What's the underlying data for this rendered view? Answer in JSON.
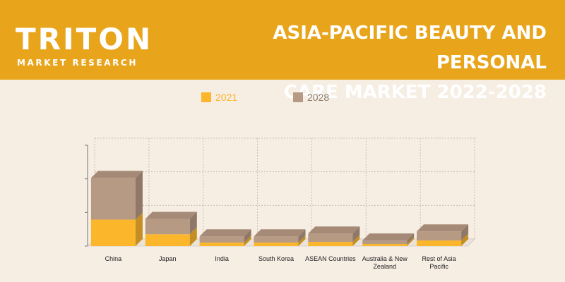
{
  "header": {
    "logo_word": "TRITON",
    "logo_sub": "MARKET RESEARCH",
    "title_line1": "ASIA-PACIFIC BEAUTY AND PERSONAL",
    "title_line2": "CARE MARKET 2022-2028"
  },
  "colors": {
    "banner": "#e8a51b",
    "background": "#f6ede3",
    "series_2021": "#fbb62c",
    "series_2028": "#b79a84"
  },
  "chart_data": {
    "type": "bar",
    "stacked": true,
    "categories": [
      "China",
      "Japan",
      "India",
      "South Korea",
      "ASEAN Countries",
      "Australia & New Zealand",
      "Rest of Asia Pacific"
    ],
    "series": [
      {
        "name": "2021",
        "values": [
          38,
          17,
          5,
          5,
          6,
          3,
          8
        ]
      },
      {
        "name": "2028",
        "values": [
          60,
          22,
          9,
          9,
          12,
          5,
          13
        ]
      }
    ],
    "ylim": [
      0,
      145
    ],
    "grid": true,
    "legend_position": "top"
  }
}
